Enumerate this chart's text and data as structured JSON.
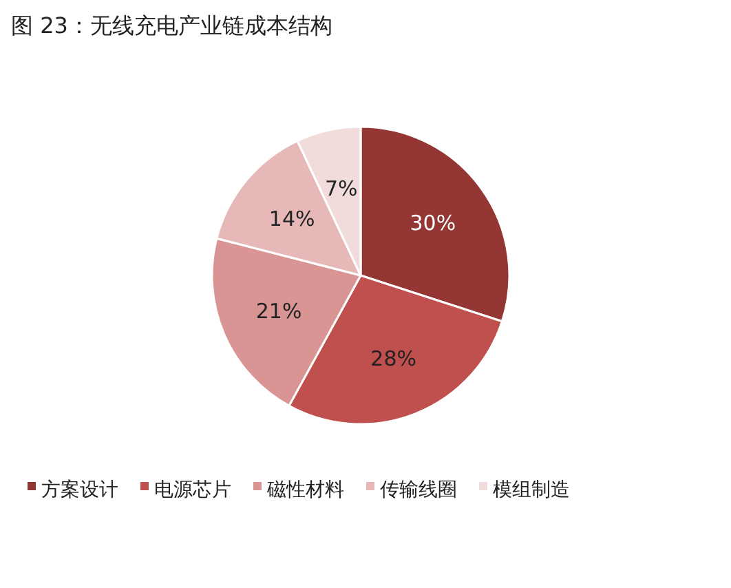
{
  "chart_data": {
    "type": "pie",
    "title": "图 23：无线充电产业链成本结构",
    "categories": [
      "方案设计",
      "电源芯片",
      "磁性材料",
      "传输线圈",
      "模组制造"
    ],
    "values": [
      30,
      28,
      21,
      14,
      7
    ],
    "colors": [
      "#943634",
      "#c0504d",
      "#d99594",
      "#e6b9b8",
      "#f2dcdb"
    ],
    "value_labels": [
      "30%",
      "28%",
      "21%",
      "14%",
      "7%"
    ],
    "legend": "bottom"
  }
}
